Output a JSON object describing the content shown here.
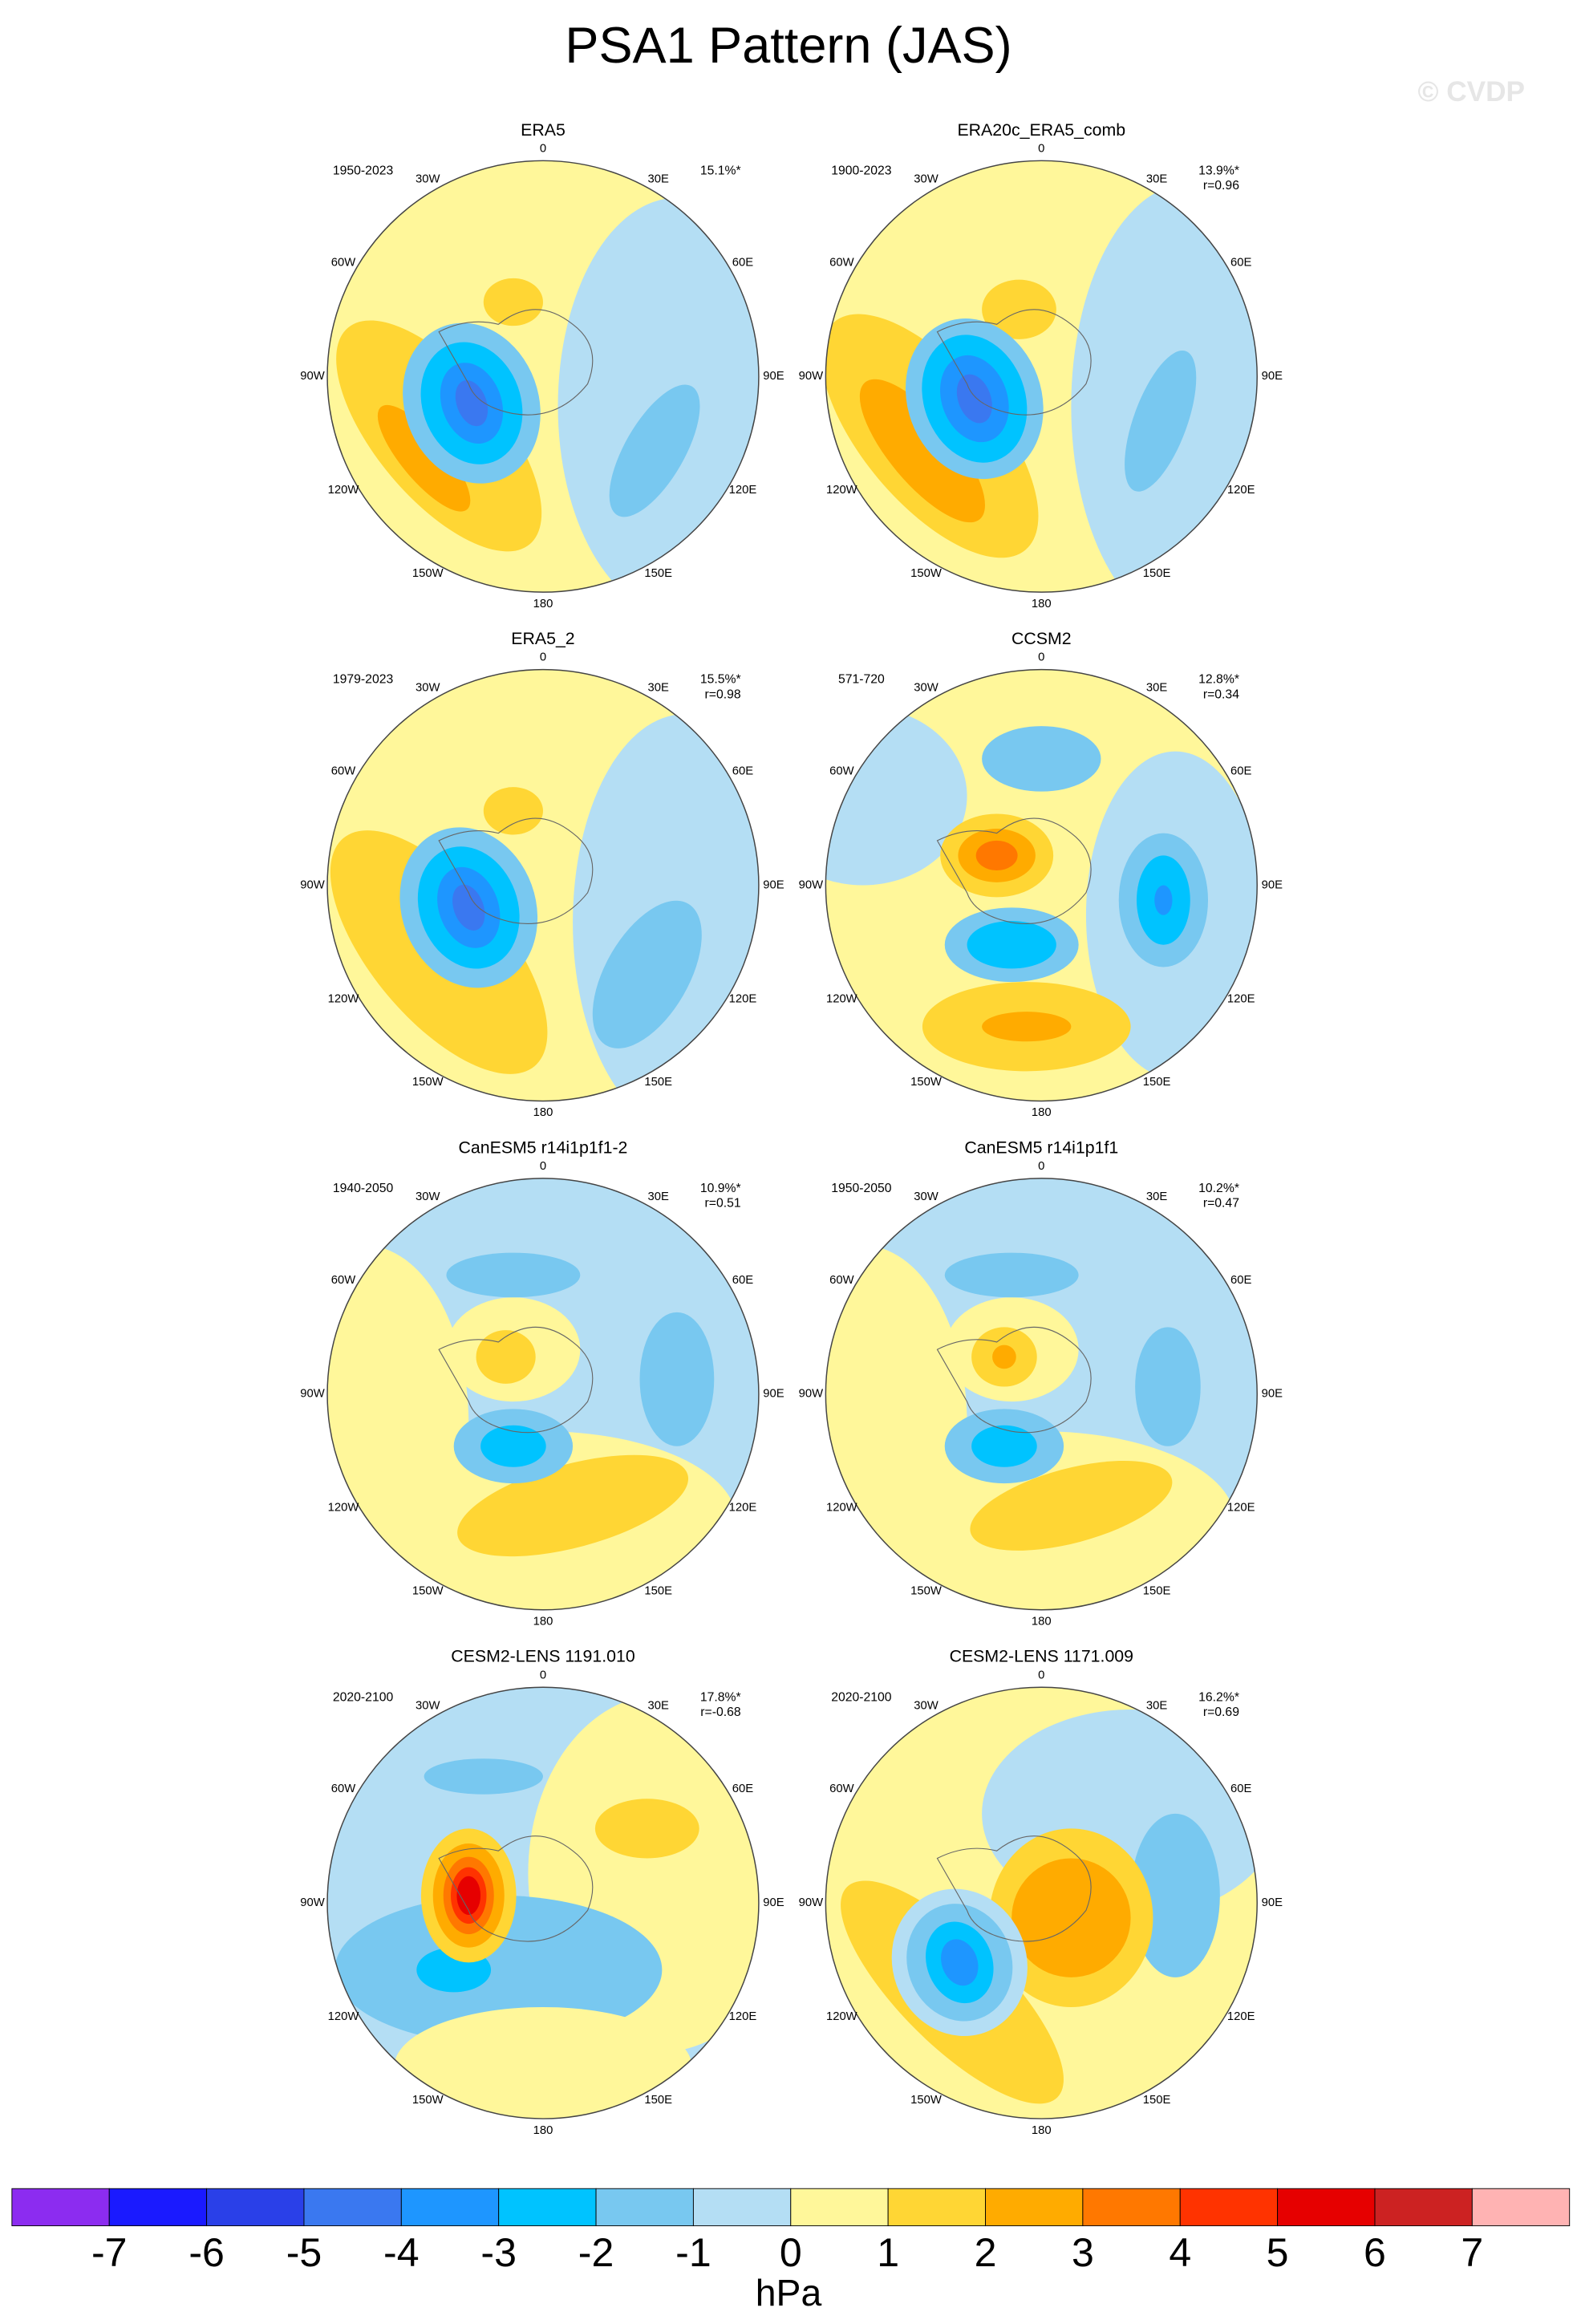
{
  "title": "PSA1 Pattern (JAS)",
  "watermark": "© CVDP",
  "longitude_labels": [
    "0",
    "30E",
    "60E",
    "90E",
    "120E",
    "150E",
    "180",
    "150W",
    "120W",
    "90W",
    "60W",
    "30W"
  ],
  "panels": [
    {
      "title": "ERA5",
      "period": "1950-2023",
      "pattern_pct": "15.1%*"
    },
    {
      "title": "ERA20c_ERA5_comb",
      "period": "1900-2023",
      "pattern_pct": "13.9%*",
      "pattern_corr": "r=0.96"
    },
    {
      "title": "ERA5_2",
      "period": "1979-2023",
      "pattern_pct": "15.5%*",
      "pattern_corr": "r=0.98"
    },
    {
      "title": "CCSM2",
      "period": "571-720",
      "pattern_pct": "12.8%*",
      "pattern_corr": "r=0.34"
    },
    {
      "title": "CanESM5 r14i1p1f1-2",
      "period": "1940-2050",
      "pattern_pct": "10.9%*",
      "pattern_corr": "r=0.51"
    },
    {
      "title": "CanESM5 r14i1p1f1",
      "period": "1950-2050",
      "pattern_pct": "10.2%*",
      "pattern_corr": "r=0.47"
    },
    {
      "title": "CESM2-LENS 1191.010",
      "period": "2020-2100",
      "pattern_pct": "17.8%*",
      "pattern_corr": "r=-0.68"
    },
    {
      "title": "CESM2-LENS 1171.009",
      "period": "2020-2100",
      "pattern_pct": "16.2%*",
      "pattern_corr": "r=0.69"
    }
  ],
  "colorbar": {
    "ticks": [
      -7,
      -6,
      -5,
      -4,
      -3,
      -2,
      -1,
      0,
      1,
      2,
      3,
      4,
      5,
      6,
      7
    ],
    "colors": [
      "#8c2cf0",
      "#1a1aff",
      "#2a40e8",
      "#3a78f0",
      "#1e96ff",
      "#00c3ff",
      "#78c8f0",
      "#b4def4",
      "#fff79a",
      "#ffd634",
      "#ffab00",
      "#ff7800",
      "#ff3300",
      "#e60000",
      "#cc2222",
      "#ffb3b3"
    ],
    "label": "hPa"
  }
}
